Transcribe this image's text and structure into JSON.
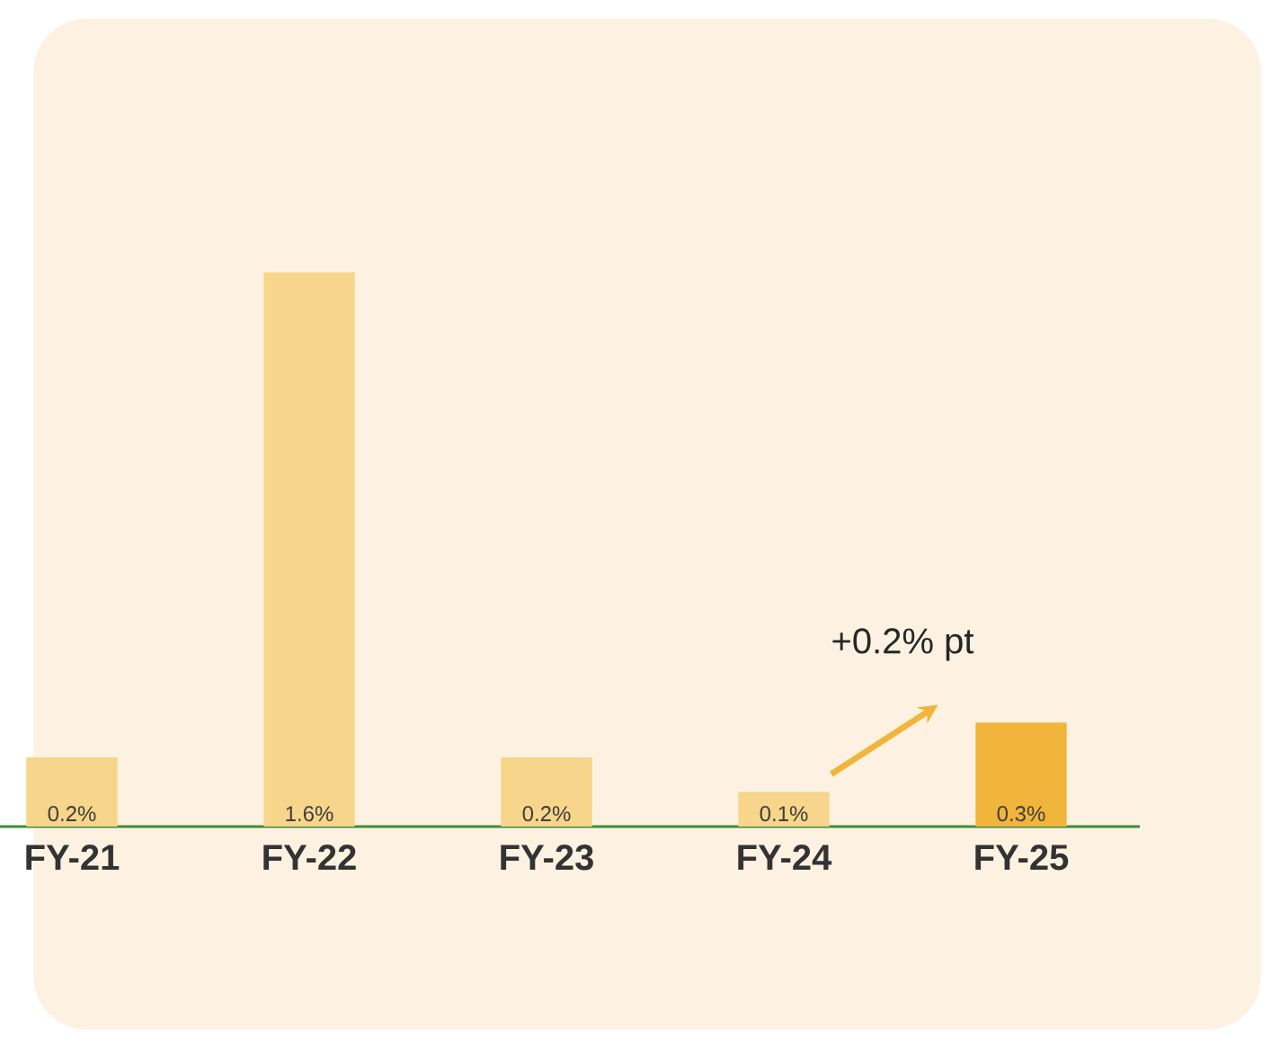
{
  "chart_data": {
    "type": "bar",
    "categories": [
      "FY-21",
      "FY-22",
      "FY-23",
      "FY-24",
      "FY-25"
    ],
    "values": [
      0.2,
      1.6,
      0.2,
      0.1,
      0.3
    ],
    "value_labels": [
      "0.2%",
      "1.6%",
      "0.2%",
      "0.1%",
      "0.3%"
    ],
    "colors": [
      "#f7d58a",
      "#f7d58a",
      "#f7d58a",
      "#f7d58a",
      "#f0b53a"
    ],
    "annotations": [
      "+0.2% pt"
    ]
  }
}
